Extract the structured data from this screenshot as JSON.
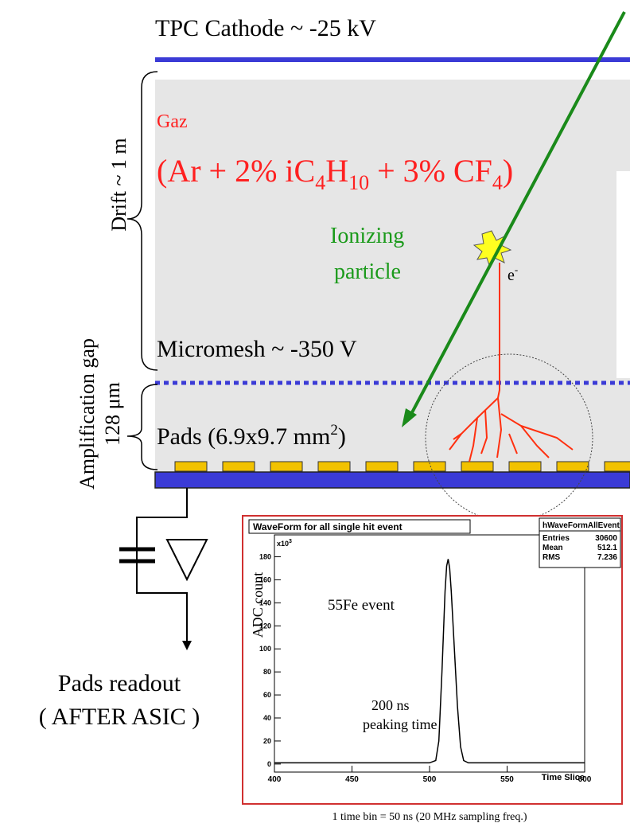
{
  "cathode_label": "TPC Cathode ~ -25 kV",
  "drift_label": "Drift ~ 1 m",
  "gas_label": "Gaz",
  "gas_formula": [
    "(Ar + 2% iC",
    "4",
    "H",
    "10",
    " + 3% CF",
    "4",
    ")"
  ],
  "particle_label": [
    "Ionizing",
    "particle"
  ],
  "electron_label": [
    "e",
    "-"
  ],
  "mesh_label": "Micromesh ~ -350 V",
  "gap_label": [
    "Amplification gap",
    "128 μm"
  ],
  "pads_label": [
    "Pads (6.9x9.7 mm",
    "2",
    ")"
  ],
  "readout_label": [
    "Pads readout",
    "( AFTER ASIC )"
  ],
  "chart_data": {
    "type": "line",
    "title": "WaveForm for all single hit event",
    "stats": {
      "name": "hWaveFormAllEvent",
      "rows": [
        [
          "Entries",
          30600
        ],
        [
          "Mean",
          512.1
        ],
        [
          "RMS",
          7.236
        ]
      ]
    },
    "ylabel": "ADC count",
    "xlabel": "Time Slice",
    "y_multiplier": [
      "x10",
      "3"
    ],
    "annotations": [
      "55Fe event",
      "200 ns",
      "peaking time"
    ],
    "caption": "1 time bin = 50 ns (20 MHz sampling freq.)",
    "x": [
      400,
      500,
      504,
      506,
      508,
      510,
      511,
      512,
      513,
      514,
      516,
      518,
      520,
      522,
      525,
      600
    ],
    "values": [
      1,
      1,
      3,
      20,
      80,
      150,
      172,
      178,
      170,
      150,
      100,
      50,
      15,
      3,
      1,
      1
    ],
    "color": "#000000",
    "xlim": [
      400,
      600
    ],
    "ylim": [
      -7,
      199
    ],
    "xticks": [
      400,
      450,
      500,
      550,
      600
    ],
    "yticks": [
      0,
      20,
      40,
      60,
      80,
      100,
      120,
      140,
      160,
      180
    ]
  }
}
